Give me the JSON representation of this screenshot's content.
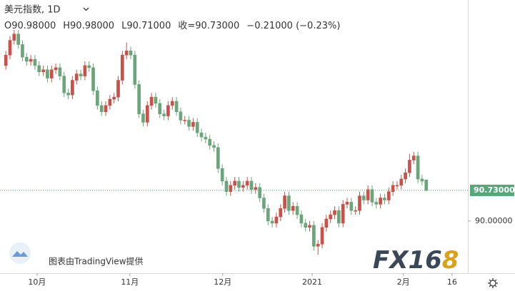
{
  "chart_data": {
    "type": "candlestick",
    "title": "美元指数, 1D",
    "ohlc_legend": [
      "O90.98000",
      "H90.98000",
      "L90.71000",
      "收=90.73000",
      "−0.21000 (−0.23%)"
    ],
    "open": [
      93.7,
      93.95,
      94.3,
      94.45,
      94.2,
      93.9,
      93.8,
      93.85,
      93.7,
      93.55,
      93.6,
      93.4,
      93.6,
      93.65,
      93.45,
      93.05,
      93.0,
      93.35,
      93.5,
      93.45,
      93.7,
      93.65,
      93.1,
      92.75,
      92.6,
      92.75,
      92.9,
      92.95,
      93.35,
      93.95,
      94.05,
      93.95,
      93.25,
      92.55,
      92.35,
      92.75,
      92.95,
      92.8,
      92.55,
      92.5,
      92.75,
      92.85,
      92.6,
      92.4,
      92.4,
      92.25,
      92.35,
      92.1,
      92.0,
      91.95,
      91.8,
      91.75,
      91.25,
      90.95,
      90.7,
      90.85,
      90.95,
      90.8,
      90.85,
      90.95,
      90.75,
      90.8,
      90.55,
      90.3,
      90.0,
      89.95,
      90.1,
      90.3,
      90.6,
      90.25,
      90.35,
      90.15,
      89.95,
      89.85,
      89.9,
      89.4,
      89.45,
      89.85,
      90.05,
      90.15,
      90.25,
      89.95,
      90.4,
      90.45,
      90.25,
      90.25,
      90.6,
      90.5,
      90.75,
      90.45,
      90.4,
      90.55,
      90.5,
      90.7,
      90.85,
      90.85,
      91.0,
      91.15,
      91.45,
      91.55,
      91.0,
      90.98
    ],
    "high": [
      94.05,
      94.4,
      94.55,
      94.55,
      94.3,
      94.0,
      93.95,
      93.95,
      93.8,
      93.7,
      93.7,
      93.7,
      93.75,
      93.75,
      93.55,
      93.15,
      93.45,
      93.6,
      93.6,
      93.8,
      93.8,
      93.75,
      93.2,
      92.85,
      92.85,
      93.0,
      93.05,
      93.45,
      94.05,
      94.25,
      94.15,
      94.05,
      93.35,
      92.65,
      92.85,
      93.05,
      93.05,
      92.9,
      92.65,
      92.85,
      92.95,
      92.95,
      92.7,
      92.5,
      92.5,
      92.45,
      92.45,
      92.2,
      92.1,
      92.05,
      91.9,
      91.85,
      91.35,
      91.05,
      90.95,
      91.05,
      91.05,
      90.95,
      91.05,
      91.05,
      90.9,
      90.9,
      90.65,
      90.4,
      90.1,
      90.2,
      90.4,
      90.7,
      90.7,
      90.45,
      90.45,
      90.25,
      90.05,
      90.0,
      90.0,
      89.55,
      89.95,
      90.15,
      90.25,
      90.35,
      90.35,
      90.5,
      90.55,
      90.55,
      90.35,
      90.7,
      90.7,
      90.85,
      90.85,
      90.55,
      90.65,
      90.65,
      90.8,
      90.95,
      90.95,
      91.1,
      91.25,
      91.6,
      91.65,
      91.65,
      91.1,
      90.98
    ],
    "low": [
      93.6,
      93.85,
      94.2,
      94.1,
      93.8,
      93.7,
      93.7,
      93.6,
      93.45,
      93.45,
      93.3,
      93.3,
      93.5,
      93.35,
      92.95,
      92.9,
      92.9,
      93.25,
      93.35,
      93.35,
      93.55,
      93.0,
      92.65,
      92.5,
      92.5,
      92.65,
      92.8,
      92.85,
      93.25,
      93.85,
      93.85,
      93.15,
      92.45,
      92.25,
      92.25,
      92.65,
      92.7,
      92.45,
      92.4,
      92.4,
      92.65,
      92.5,
      92.3,
      92.3,
      92.15,
      92.15,
      92.0,
      91.9,
      91.85,
      91.7,
      91.65,
      91.15,
      90.85,
      90.6,
      90.6,
      90.75,
      90.7,
      90.7,
      90.75,
      90.65,
      90.65,
      90.45,
      90.2,
      89.9,
      89.85,
      89.85,
      90.0,
      90.2,
      90.15,
      90.15,
      90.05,
      89.85,
      89.75,
      89.75,
      89.3,
      89.2,
      89.35,
      89.75,
      89.95,
      90.05,
      89.85,
      89.85,
      90.3,
      90.15,
      90.15,
      90.15,
      90.4,
      90.4,
      90.35,
      90.3,
      90.3,
      90.4,
      90.4,
      90.6,
      90.75,
      90.75,
      90.9,
      91.05,
      91.35,
      90.9,
      90.85,
      90.71
    ],
    "close": [
      93.95,
      94.3,
      94.45,
      94.2,
      93.9,
      93.8,
      93.85,
      93.7,
      93.55,
      93.6,
      93.4,
      93.6,
      93.65,
      93.45,
      93.05,
      93.0,
      93.35,
      93.5,
      93.45,
      93.7,
      93.65,
      93.1,
      92.75,
      92.6,
      92.75,
      92.9,
      92.95,
      93.35,
      93.95,
      94.05,
      93.95,
      93.25,
      92.55,
      92.35,
      92.75,
      92.95,
      92.8,
      92.55,
      92.5,
      92.75,
      92.85,
      92.6,
      92.4,
      92.4,
      92.25,
      92.35,
      92.1,
      92.0,
      91.95,
      91.8,
      91.75,
      91.25,
      90.95,
      90.7,
      90.85,
      90.95,
      90.8,
      90.85,
      90.95,
      90.75,
      90.8,
      90.55,
      90.3,
      90.0,
      89.95,
      90.1,
      90.3,
      90.6,
      90.25,
      90.35,
      90.15,
      89.95,
      89.85,
      89.9,
      89.4,
      89.45,
      89.85,
      90.05,
      90.15,
      90.25,
      89.95,
      90.4,
      90.45,
      90.25,
      90.25,
      90.6,
      90.5,
      90.75,
      90.45,
      90.4,
      90.55,
      90.5,
      90.7,
      90.85,
      90.85,
      91.0,
      91.15,
      91.45,
      91.55,
      91.0,
      90.95,
      90.73
    ],
    "up_color": "#c8524a",
    "down_color": "#6ba57a",
    "xlim": [
      -1.4,
      111
    ],
    "xticks": [
      {
        "value": 7.5,
        "label": "10月"
      },
      {
        "value": 29.8,
        "label": "11月"
      },
      {
        "value": 52.1,
        "label": "12月"
      },
      {
        "value": 73.6,
        "label": "2021"
      },
      {
        "value": 95.5,
        "label": "2月"
      },
      {
        "value": 107.2,
        "label": "16"
      }
    ],
    "ylim": [
      88.76,
      95.26
    ],
    "yticks": [
      {
        "value": 90,
        "label": "90.00000"
      }
    ],
    "last_price": {
      "value": 90.73,
      "label": "90.73000",
      "color": "#53a77b"
    },
    "watermark": "图表由TradingView提供",
    "logo": {
      "main": "FX16",
      "accent": "8"
    }
  }
}
